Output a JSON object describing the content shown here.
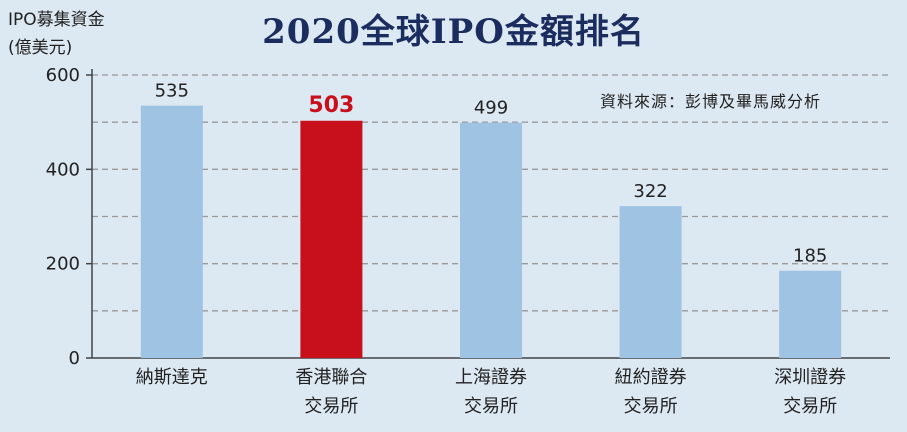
{
  "chart_data": {
    "type": "bar",
    "title": "2020全球IPO金額排名",
    "ylabel_line1": "IPO募集資金",
    "ylabel_line2": "(億美元)",
    "source": "資料來源：彭博及畢馬威分析",
    "categories": [
      [
        "納斯達克"
      ],
      [
        "香港聯合",
        "交易所"
      ],
      [
        "上海證券",
        "交易所"
      ],
      [
        "紐約證券",
        "交易所"
      ],
      [
        "深圳證券",
        "交易所"
      ]
    ],
    "values": [
      535,
      503,
      499,
      322,
      185
    ],
    "value_labels": [
      "535",
      "503",
      "499",
      "322",
      "185"
    ],
    "highlight_index": 1,
    "ylim": [
      0,
      600
    ],
    "yticks": [
      0,
      200,
      400,
      600
    ],
    "gridlines": [
      100,
      200,
      300,
      400,
      500,
      600
    ],
    "grid": true,
    "colors": {
      "bar": "#9fc3e3",
      "highlight": "#c8101c",
      "title": "#1b2d5e",
      "grid": "#999999"
    }
  }
}
